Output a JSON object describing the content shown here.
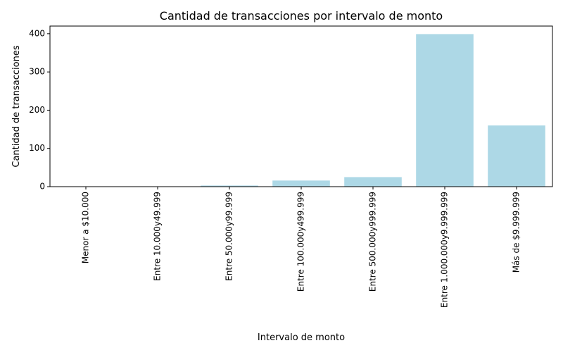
{
  "chart_data": {
    "type": "bar",
    "title": "Cantidad de transacciones por intervalo de monto",
    "xlabel": "Intervalo de monto",
    "ylabel": "Cantidad de transacciones",
    "categories": [
      "Menor a $10.000",
      "Entre 10.000y49.999",
      "Entre 50.000y99.999",
      "Entre 100.000y499.999",
      "Entre 500.000y999.999",
      "Entre 1.000.000y9.999.999",
      "Más de $9.999.999"
    ],
    "values": [
      0,
      0,
      3,
      16,
      25,
      399,
      160
    ],
    "ylim": [
      0,
      420
    ],
    "yticks": [
      0,
      100,
      200,
      300,
      400
    ],
    "grid": false,
    "legend": "none",
    "bar_color": "#add8e6",
    "axis_color": "#000000"
  }
}
